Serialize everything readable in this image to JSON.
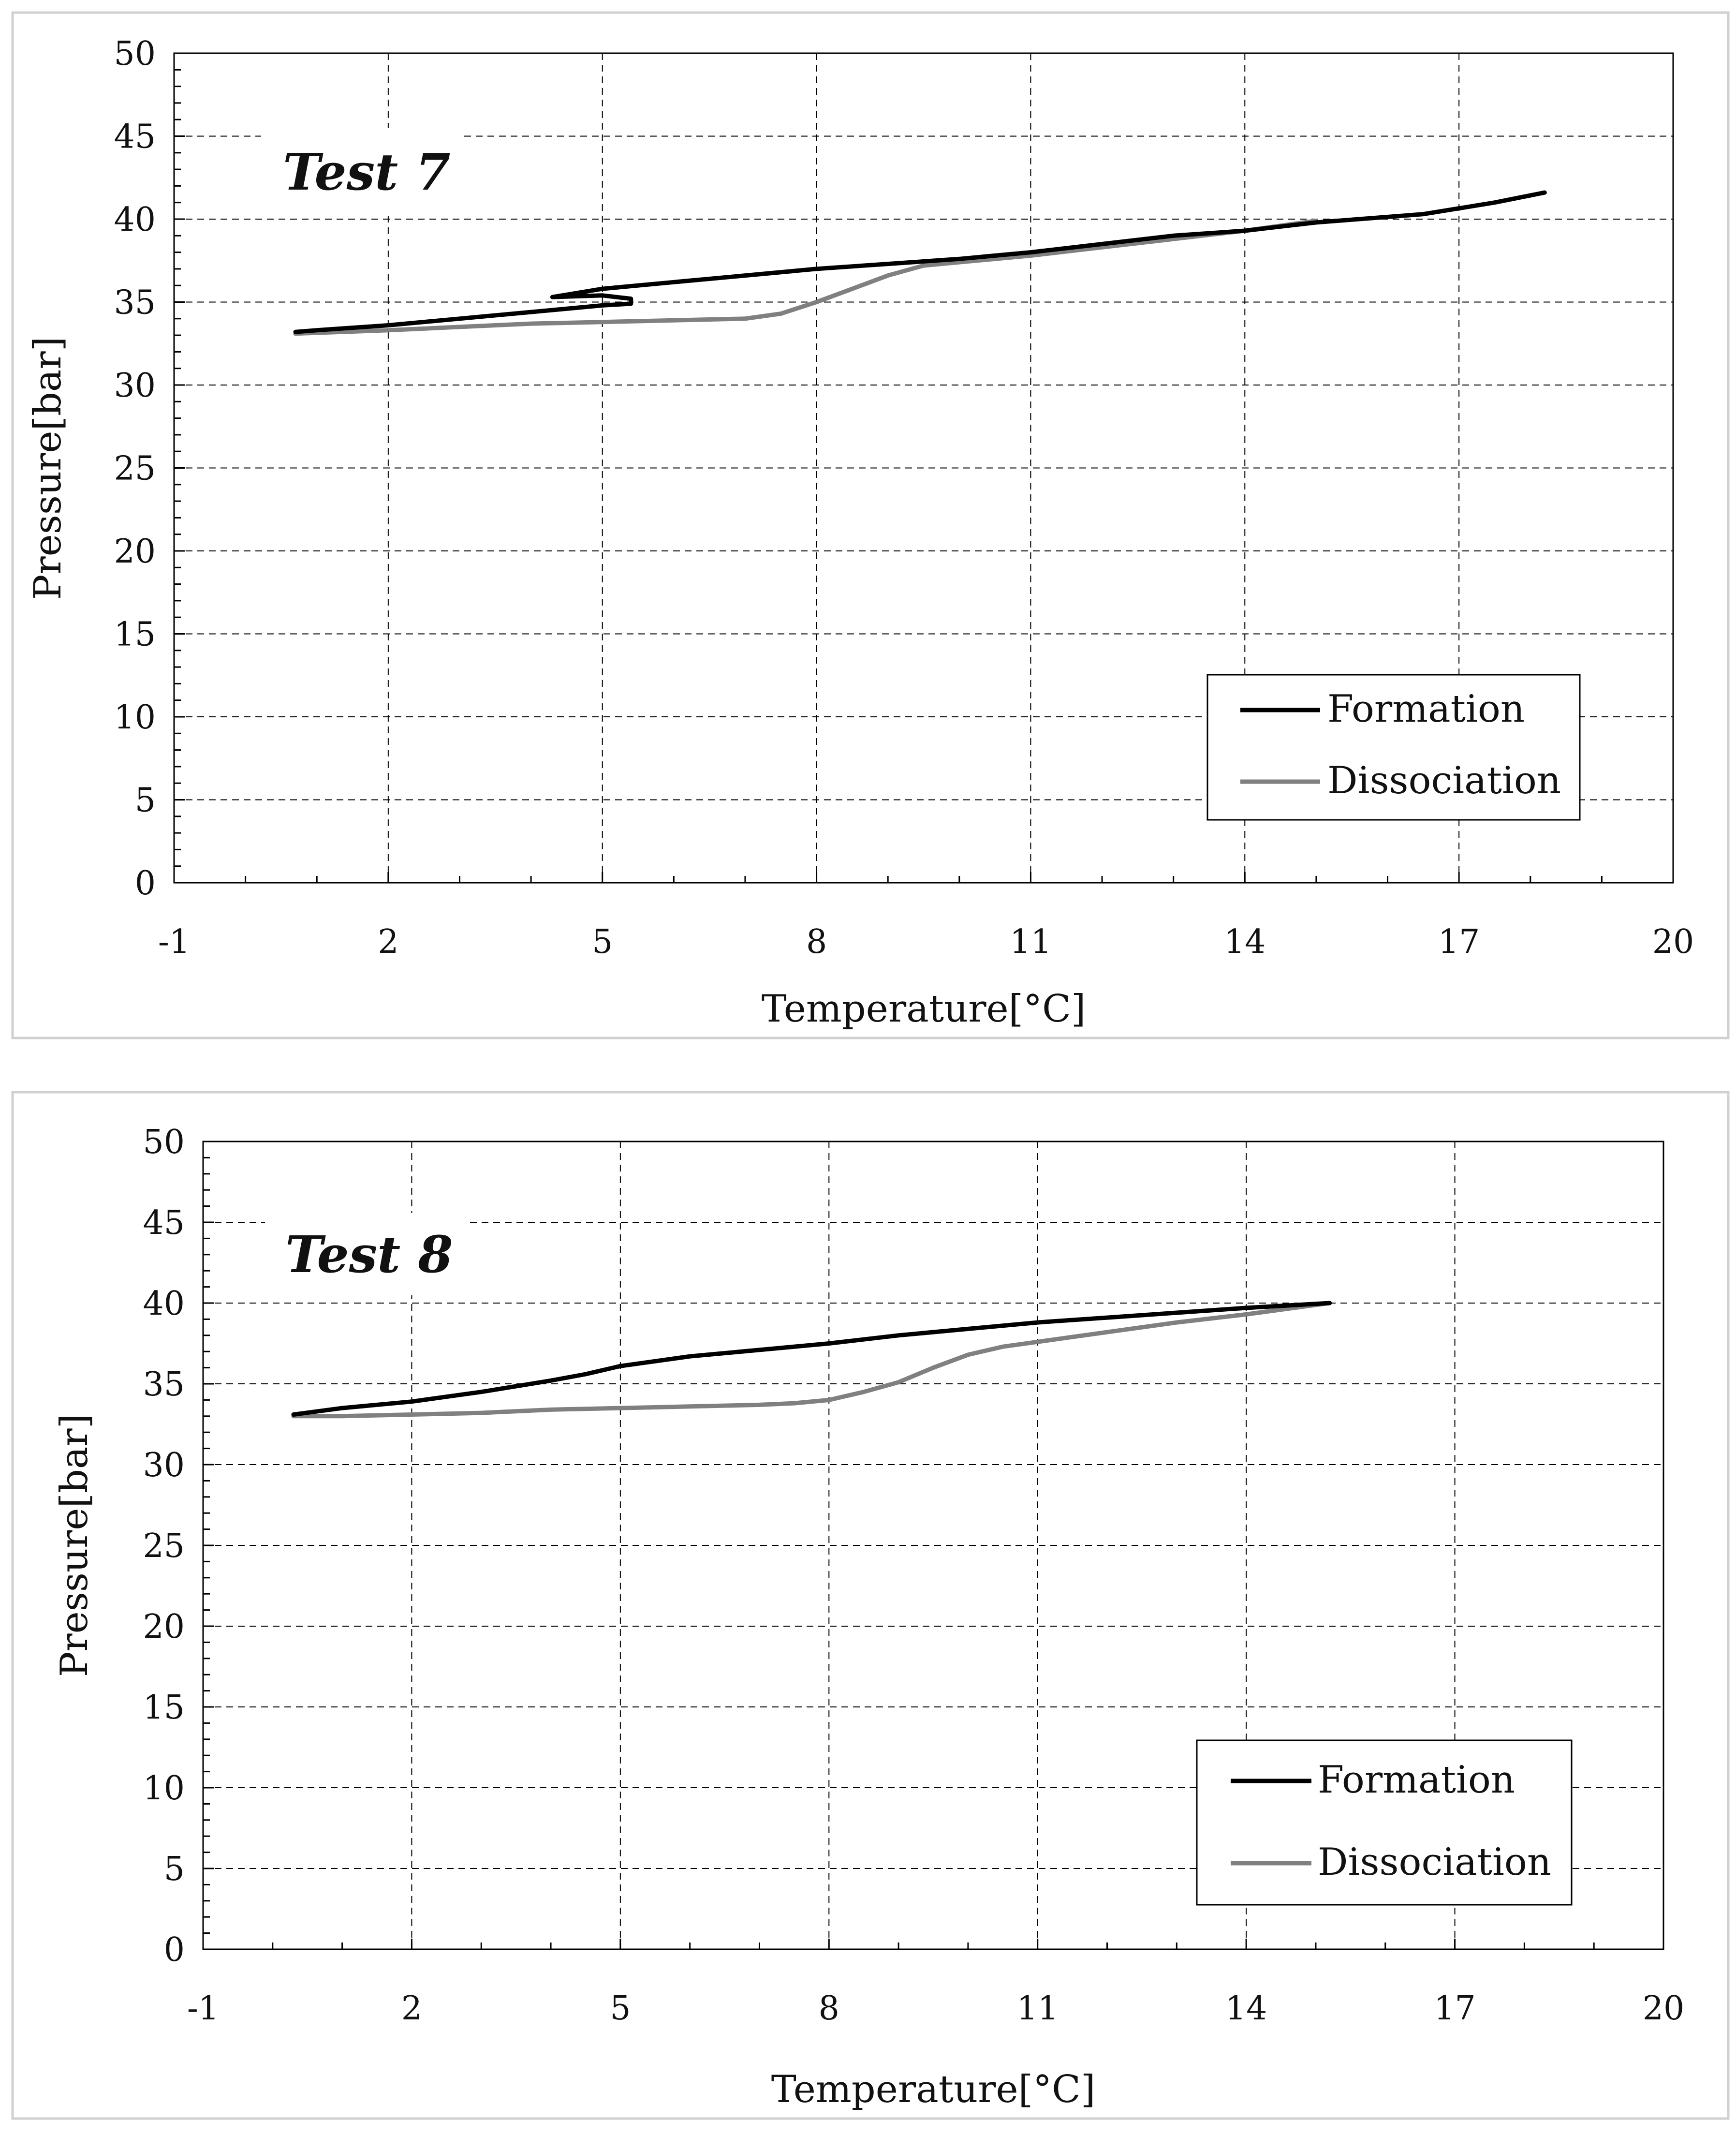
{
  "chart_data": [
    {
      "type": "line",
      "title": "Test 7",
      "xlabel": "Temperature[°C]",
      "ylabel": "Pressure[bar]",
      "xlim": [
        -1,
        20
      ],
      "ylim": [
        0,
        50
      ],
      "xticks": [
        -1,
        2,
        5,
        8,
        11,
        14,
        17,
        20
      ],
      "yticks": [
        0,
        5,
        10,
        15,
        20,
        25,
        30,
        35,
        40,
        45,
        50
      ],
      "grid": true,
      "legend_position": "bottom-right",
      "series": [
        {
          "name": "Formation",
          "color": "#000000",
          "x": [
            18.2,
            17.5,
            16.5,
            15.0,
            14.0,
            13.0,
            12.0,
            11.0,
            10.0,
            9.0,
            8.0,
            7.0,
            6.0,
            5.0,
            4.3,
            5.0,
            5.4,
            5.4,
            5.0,
            4.0,
            3.0,
            2.0,
            1.0,
            0.7
          ],
          "y": [
            41.6,
            41.0,
            40.3,
            39.8,
            39.3,
            39.0,
            38.5,
            38.0,
            37.6,
            37.3,
            37.0,
            36.6,
            36.2,
            35.8,
            35.3,
            35.4,
            35.2,
            34.9,
            34.8,
            34.4,
            34.0,
            33.6,
            33.3,
            33.2
          ]
        },
        {
          "name": "Dissociation",
          "color": "#808080",
          "x": [
            0.7,
            2.0,
            3.0,
            4.0,
            5.0,
            6.0,
            7.0,
            7.5,
            8.0,
            8.5,
            9.0,
            9.5,
            10.0,
            11.0,
            12.0,
            13.0,
            14.0,
            15.0
          ],
          "y": [
            33.1,
            33.3,
            33.5,
            33.7,
            33.8,
            33.9,
            34.0,
            34.3,
            35.0,
            35.8,
            36.6,
            37.2,
            37.4,
            37.8,
            38.3,
            38.8,
            39.3,
            39.9
          ]
        }
      ]
    },
    {
      "type": "line",
      "title": "Test 8",
      "xlabel": "Temperature[°C]",
      "ylabel": "Pressure[bar]",
      "xlim": [
        -1,
        20
      ],
      "ylim": [
        0,
        50
      ],
      "xticks": [
        -1,
        2,
        5,
        8,
        11,
        14,
        17,
        20
      ],
      "yticks": [
        0,
        5,
        10,
        15,
        20,
        25,
        30,
        35,
        40,
        45,
        50
      ],
      "grid": true,
      "legend_position": "bottom-right",
      "series": [
        {
          "name": "Formation",
          "color": "#000000",
          "x": [
            0.3,
            1.0,
            2.0,
            3.0,
            4.0,
            4.5,
            5.0,
            6.0,
            7.0,
            8.0,
            9.0,
            10.0,
            11.0,
            12.0,
            13.0,
            14.0,
            15.2
          ],
          "y": [
            33.1,
            33.5,
            33.9,
            34.5,
            35.2,
            35.6,
            36.1,
            36.7,
            37.1,
            37.5,
            38.0,
            38.4,
            38.8,
            39.1,
            39.4,
            39.7,
            40.0
          ]
        },
        {
          "name": "Dissociation",
          "color": "#808080",
          "x": [
            0.3,
            1.0,
            2.0,
            3.0,
            4.0,
            5.0,
            6.0,
            7.0,
            7.5,
            8.0,
            8.5,
            9.0,
            9.5,
            10.0,
            10.5,
            11.0,
            12.0,
            13.0,
            14.0,
            15.2
          ],
          "y": [
            33.0,
            33.0,
            33.1,
            33.2,
            33.4,
            33.5,
            33.6,
            33.7,
            33.8,
            34.0,
            34.5,
            35.1,
            36.0,
            36.8,
            37.3,
            37.6,
            38.2,
            38.8,
            39.3,
            40.0
          ]
        }
      ]
    }
  ]
}
